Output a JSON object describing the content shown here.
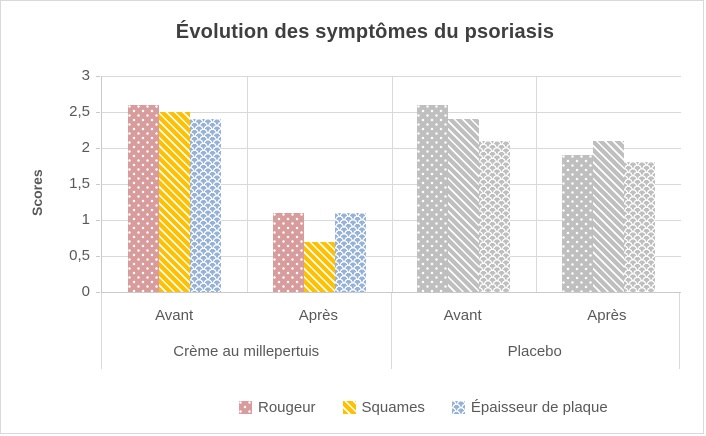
{
  "chart_data": {
    "type": "bar",
    "title": "Évolution des symptômes du psoriasis",
    "ylabel": "Scores",
    "ylim": [
      0,
      3
    ],
    "ytick_step": 0.5,
    "ytick_labels": [
      "3",
      "2,5",
      "2",
      "1,5",
      "1",
      "0,5",
      "0"
    ],
    "grid": true,
    "legend_position": "bottom",
    "groups": [
      {
        "label": "Crème au millepertuis",
        "categories": [
          "Avant",
          "Après"
        ],
        "uses_series_colors": true
      },
      {
        "label": "Placebo",
        "categories": [
          "Avant",
          "Après"
        ],
        "uses_series_colors": false
      }
    ],
    "series": [
      {
        "name": "Rougeur",
        "pattern": "dots",
        "color": "#d89c9c",
        "values": [
          2.6,
          1.1,
          2.6,
          1.9
        ]
      },
      {
        "name": "Squames",
        "pattern": "stripes",
        "color": "#ffc000",
        "values": [
          2.5,
          0.7,
          2.4,
          2.1
        ]
      },
      {
        "name": "Épaisseur de plaque",
        "pattern": "scales",
        "color": "#96b3d7",
        "values": [
          2.4,
          1.1,
          2.1,
          1.8
        ]
      }
    ],
    "placebo_color": "#bfbfbf"
  },
  "colors": {
    "title_text": "#3f3f3f",
    "axis_text": "#595959",
    "gridline": "#d9d9d9",
    "axis_line": "#c9c9c9",
    "chart_border": "#d9d9d9",
    "background": "#ffffff"
  }
}
